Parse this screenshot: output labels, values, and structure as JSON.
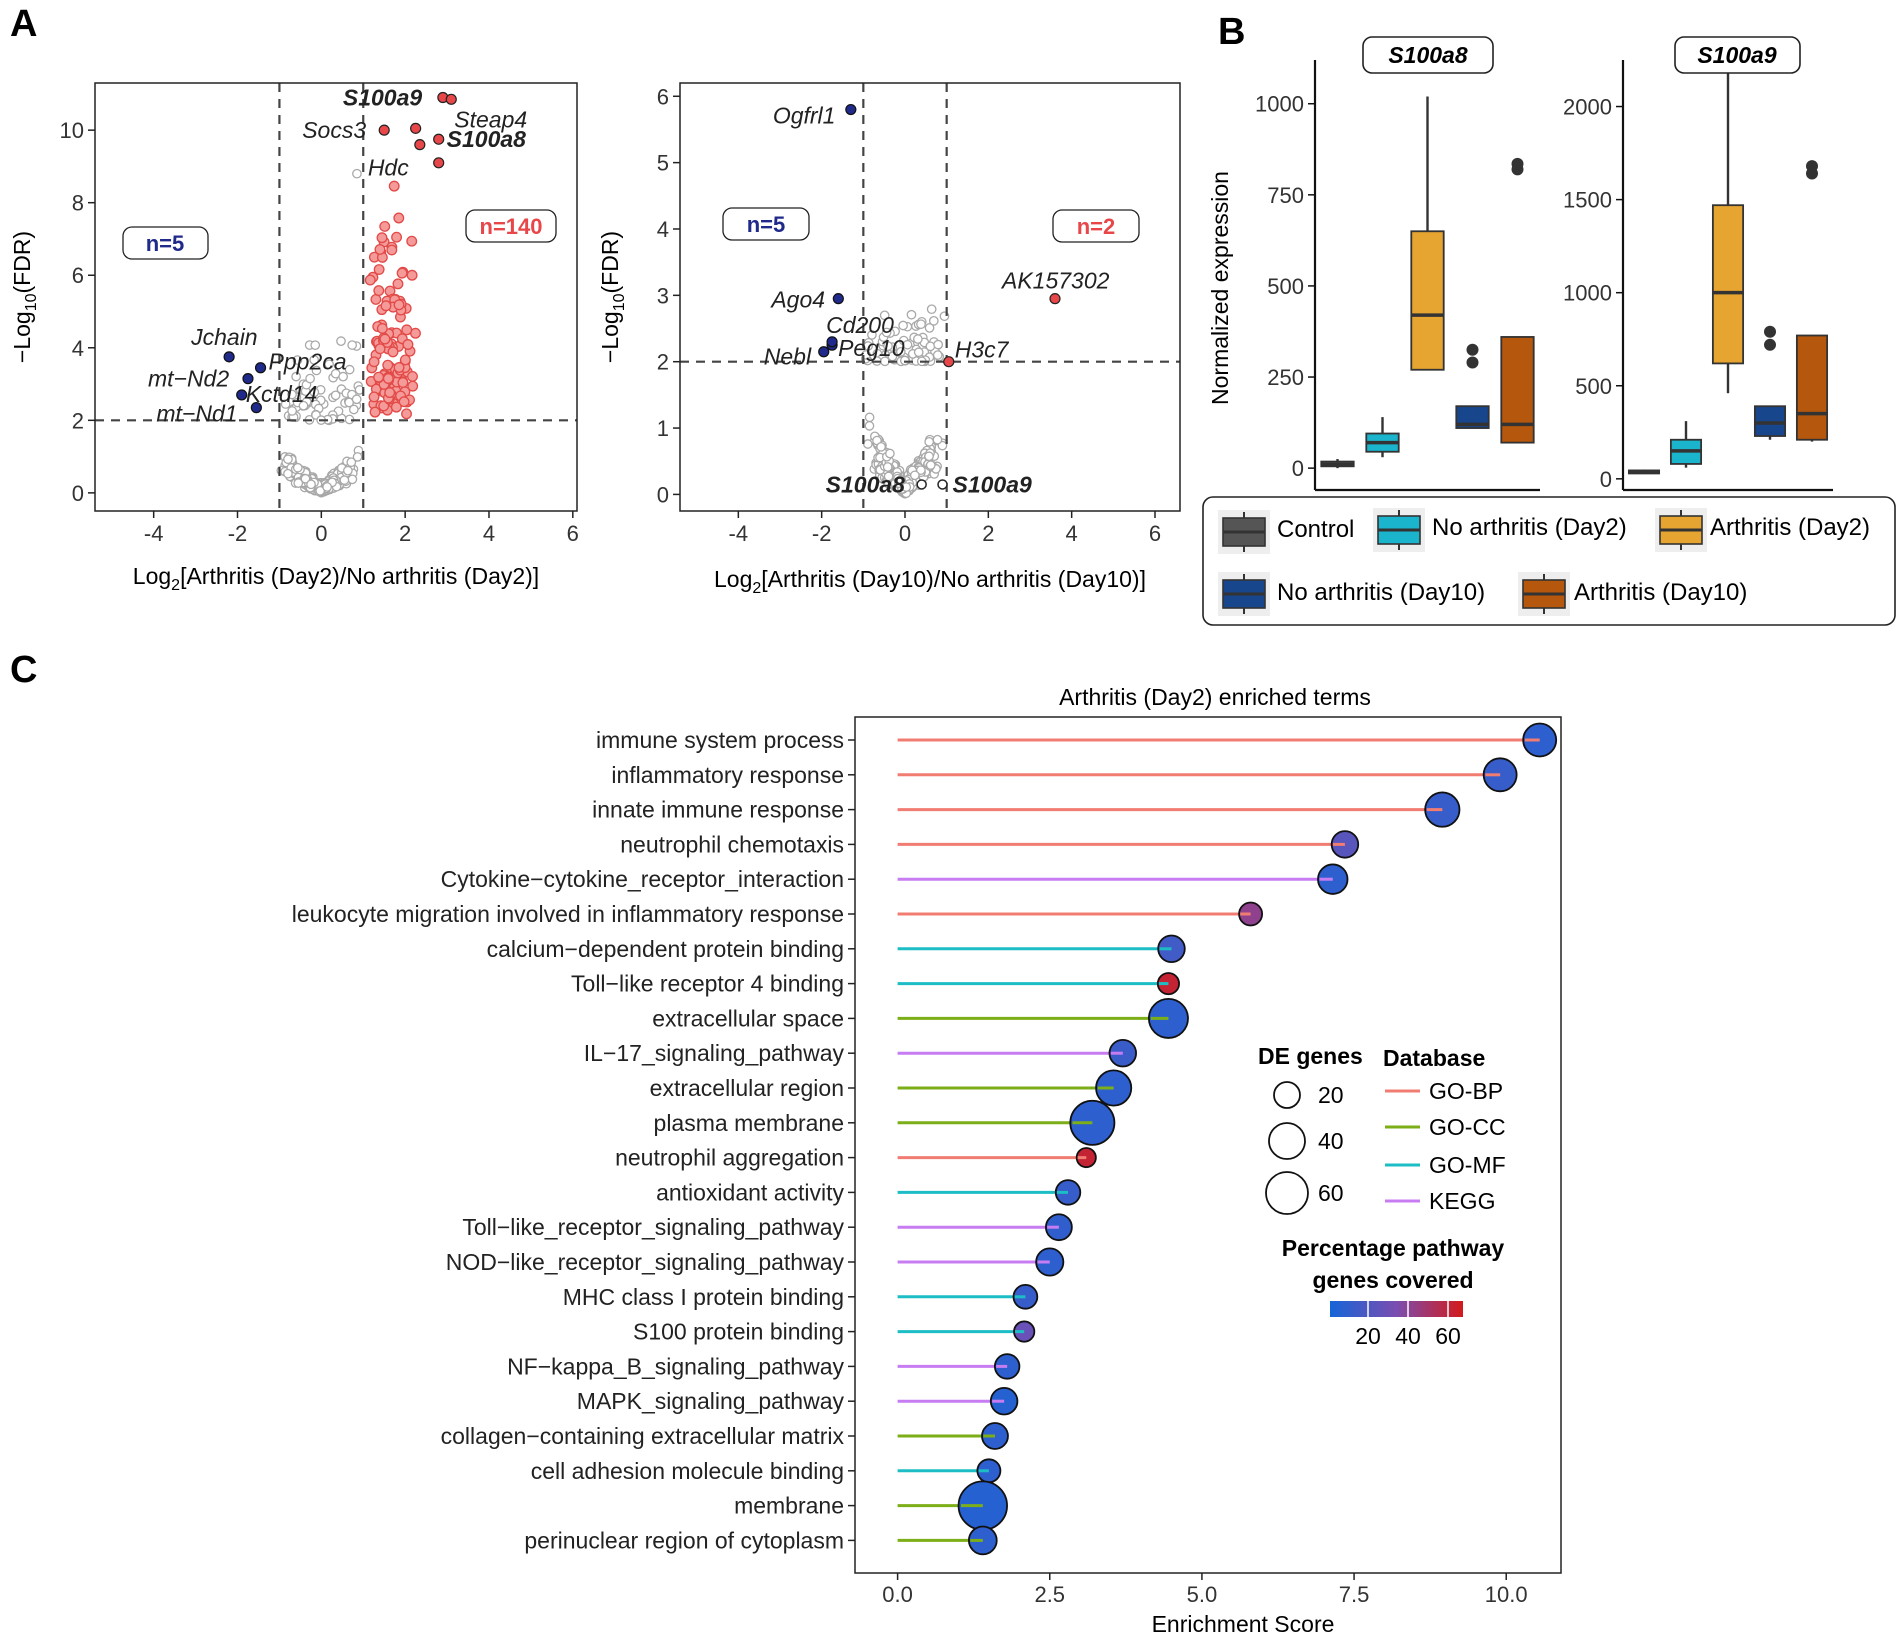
{
  "panels": {
    "a": "A",
    "b": "B",
    "c": "C"
  },
  "chart_data": [
    {
      "panel": "A-left",
      "type": "scatter",
      "title": "",
      "xlabel": "Log2[Arthritis (Day2)/No arthritis (Day2)]",
      "xlabel_parts": [
        "Log",
        "2",
        "[Arthritis (Day2)/No arthritis (Day2)]"
      ],
      "ylabel": "-Log10(FDR)",
      "ylabel_parts": [
        "−Log",
        "10",
        "(FDR)"
      ],
      "xlim": [
        -5.4,
        6.1
      ],
      "ylim": [
        -0.5,
        11.3
      ],
      "xticks": [
        -4,
        -2,
        0,
        2,
        4,
        6
      ],
      "yticks": [
        0,
        2,
        4,
        6,
        8,
        10
      ],
      "thresholds": {
        "x": [
          -1,
          1
        ],
        "y": 2
      },
      "counts": {
        "down": "n=5",
        "up": "n=140"
      },
      "colors": {
        "down": "#1f2a8a",
        "up": "#f0504f",
        "ns": "#a8a8a8",
        "count_down": "#1f2a8a",
        "count_up": "#e8474a"
      },
      "down_points": [
        {
          "x": -2.2,
          "y": 3.75,
          "label": "Jchain",
          "bold": false
        },
        {
          "x": -1.75,
          "y": 3.15,
          "label": "mt−Nd2",
          "bold": false
        },
        {
          "x": -1.45,
          "y": 3.45,
          "label": "Ppp2ca",
          "bold": false
        },
        {
          "x": -1.9,
          "y": 2.7,
          "label": "Kctd14",
          "bold": false
        },
        {
          "x": -1.55,
          "y": 2.35,
          "label": "mt−Nd1",
          "bold": false
        }
      ],
      "up_points": [
        {
          "x": 2.9,
          "y": 10.9,
          "label": "S100a9",
          "bold": true
        },
        {
          "x": 3.1,
          "y": 10.85,
          "label": "Steap4",
          "bold": false
        },
        {
          "x": 1.5,
          "y": 10.0,
          "label": "Socs3",
          "bold": false
        },
        {
          "x": 2.25,
          "y": 10.05,
          "label": "",
          "bold": false
        },
        {
          "x": 2.35,
          "y": 9.6,
          "label": "Hdc",
          "bold": false
        },
        {
          "x": 2.8,
          "y": 9.75,
          "label": "S100a8",
          "bold": true
        },
        {
          "x": 2.8,
          "y": 9.1,
          "label": "",
          "bold": false
        }
      ],
      "ns_top_point": {
        "x": 0.85,
        "y": 8.8
      }
    },
    {
      "panel": "A-right",
      "type": "scatter",
      "title": "",
      "xlabel": "Log2[Arthritis (Day10)/No arthritis (Day10)]",
      "xlabel_parts": [
        "Log",
        "2",
        "[Arthritis (Day10)/No arthritis (Day10)]"
      ],
      "ylabel": "-Log10(FDR)",
      "ylabel_parts": [
        "−Log",
        "10",
        "(FDR)"
      ],
      "xlim": [
        -5.4,
        6.6
      ],
      "ylim": [
        -0.25,
        6.2
      ],
      "xticks": [
        -4,
        -2,
        0,
        2,
        4,
        6
      ],
      "yticks": [
        0,
        1,
        2,
        3,
        4,
        5,
        6
      ],
      "thresholds": {
        "x": [
          -1,
          1
        ],
        "y": 2
      },
      "counts": {
        "down": "n=5",
        "up": "n=2"
      },
      "down_points": [
        {
          "x": -1.3,
          "y": 5.8,
          "label": "Ogfrl1",
          "bold": false
        },
        {
          "x": -1.6,
          "y": 2.95,
          "label": "Ago4",
          "bold": false
        },
        {
          "x": -1.75,
          "y": 2.25,
          "label": "Cd200",
          "bold": false
        },
        {
          "x": -1.95,
          "y": 2.15,
          "label": "Nebl",
          "bold": false
        },
        {
          "x": -1.75,
          "y": 2.3,
          "label": "Peg10",
          "bold": false
        }
      ],
      "up_points": [
        {
          "x": 3.6,
          "y": 2.95,
          "label": "AK157302",
          "bold": false
        },
        {
          "x": 1.05,
          "y": 2.0,
          "label": "H3c7",
          "bold": false
        }
      ],
      "highlight_ns": [
        {
          "x": 0.4,
          "y": 0.15,
          "label": "S100a8",
          "bold": true
        },
        {
          "x": 0.9,
          "y": 0.15,
          "label": "S100a9",
          "bold": true
        }
      ]
    },
    {
      "panel": "B",
      "type": "box",
      "ylabel": "Normalized expression",
      "groups": [
        "Control",
        "No arthritis (Day2)",
        "Arthritis (Day2)",
        "No arthritis (Day10)",
        "Arthritis (Day10)"
      ],
      "colors": [
        "#555555",
        "#1bb4cd",
        "#e6a431",
        "#17468c",
        "#b5570c"
      ],
      "facets": [
        {
          "title": "S100a8",
          "yticks": [
            0,
            250,
            500,
            750,
            1000
          ],
          "ylim": [
            -60,
            1120
          ],
          "boxes": [
            {
              "min": 0,
              "q1": 5,
              "median": 10,
              "q3": 18,
              "max": 25,
              "outliers": []
            },
            {
              "min": 30,
              "q1": 45,
              "median": 70,
              "q3": 95,
              "max": 140,
              "outliers": []
            },
            {
              "min": 270,
              "q1": 270,
              "median": 420,
              "q3": 650,
              "max": 1020,
              "outliers": []
            },
            {
              "min": 110,
              "q1": 110,
              "median": 120,
              "q3": 170,
              "max": 170,
              "outliers": [
                290,
                325
              ]
            },
            {
              "min": 70,
              "q1": 70,
              "median": 120,
              "q3": 360,
              "max": 360,
              "outliers": [
                820,
                835
              ]
            }
          ]
        },
        {
          "title": "S100a9",
          "yticks": [
            0,
            500,
            1000,
            1500,
            2000
          ],
          "ylim": [
            -60,
            2250
          ],
          "boxes": [
            {
              "min": 30,
              "q1": 35,
              "median": 40,
              "q3": 45,
              "max": 50,
              "outliers": []
            },
            {
              "min": 60,
              "q1": 80,
              "median": 150,
              "q3": 210,
              "max": 310,
              "outliers": []
            },
            {
              "min": 460,
              "q1": 620,
              "median": 1000,
              "q3": 1470,
              "max": 2200,
              "outliers": []
            },
            {
              "min": 210,
              "q1": 230,
              "median": 300,
              "q3": 390,
              "max": 390,
              "outliers": [
                720,
                790
              ]
            },
            {
              "min": 200,
              "q1": 210,
              "median": 350,
              "q3": 770,
              "max": 770,
              "outliers": [
                1640,
                1680
              ]
            }
          ]
        }
      ]
    },
    {
      "panel": "C",
      "type": "lollipop",
      "title": "Arthritis (Day2) enriched terms",
      "xlabel": "Enrichment Score",
      "xlim": [
        -0.7,
        10.9
      ],
      "xticks": [
        0.0,
        2.5,
        5.0,
        7.5,
        10.0
      ],
      "xtick_labels": [
        "0.0",
        "2.5",
        "5.0",
        "7.5",
        "10.0"
      ],
      "terms": [
        {
          "label": "immune system process",
          "score": 10.55,
          "db": "GO-BP",
          "genes": 25,
          "pct": 12
        },
        {
          "label": "inflammatory response",
          "score": 9.9,
          "db": "GO-BP",
          "genes": 25,
          "pct": 15
        },
        {
          "label": "innate immune response",
          "score": 8.95,
          "db": "GO-BP",
          "genes": 28,
          "pct": 15
        },
        {
          "label": "neutrophil chemotaxis",
          "score": 7.35,
          "db": "GO-BP",
          "genes": 13,
          "pct": 25
        },
        {
          "label": "Cytokine−cytokine_receptor_interaction",
          "score": 7.15,
          "db": "KEGG",
          "genes": 18,
          "pct": 12
        },
        {
          "label": "leukocyte migration involved in inflammatory response",
          "score": 5.8,
          "db": "GO-BP",
          "genes": 8,
          "pct": 42
        },
        {
          "label": "calcium−dependent protein binding",
          "score": 4.5,
          "db": "GO-MF",
          "genes": 13,
          "pct": 18
        },
        {
          "label": "Toll−like receptor 4 binding",
          "score": 4.45,
          "db": "GO-MF",
          "genes": 6,
          "pct": 60
        },
        {
          "label": "extracellular space",
          "score": 4.45,
          "db": "GO-CC",
          "genes": 40,
          "pct": 12
        },
        {
          "label": "IL−17_signaling_pathway",
          "score": 3.7,
          "db": "KEGG",
          "genes": 13,
          "pct": 16
        },
        {
          "label": "extracellular region",
          "score": 3.55,
          "db": "GO-CC",
          "genes": 30,
          "pct": 12
        },
        {
          "label": "plasma membrane",
          "score": 3.2,
          "db": "GO-CC",
          "genes": 55,
          "pct": 12
        },
        {
          "label": "neutrophil aggregation",
          "score": 3.1,
          "db": "GO-BP",
          "genes": 4,
          "pct": 60
        },
        {
          "label": "antioxidant activity",
          "score": 2.8,
          "db": "GO-MF",
          "genes": 10,
          "pct": 15
        },
        {
          "label": "Toll−like_receptor_signaling_pathway",
          "score": 2.65,
          "db": "KEGG",
          "genes": 12,
          "pct": 13
        },
        {
          "label": "NOD−like_receptor_signaling_pathway",
          "score": 2.5,
          "db": "KEGG",
          "genes": 14,
          "pct": 12
        },
        {
          "label": "MHC class I protein binding",
          "score": 2.1,
          "db": "GO-MF",
          "genes": 9,
          "pct": 15
        },
        {
          "label": "S100 protein binding",
          "score": 2.08,
          "db": "GO-MF",
          "genes": 5,
          "pct": 30
        },
        {
          "label": "NF−kappa_B_signaling_pathway",
          "score": 1.8,
          "db": "KEGG",
          "genes": 10,
          "pct": 12
        },
        {
          "label": "MAPK_signaling_pathway",
          "score": 1.75,
          "db": "KEGG",
          "genes": 13,
          "pct": 10
        },
        {
          "label": "collagen−containing extracellular matrix",
          "score": 1.6,
          "db": "GO-CC",
          "genes": 12,
          "pct": 12
        },
        {
          "label": "cell adhesion molecule binding",
          "score": 1.5,
          "db": "GO-MF",
          "genes": 8,
          "pct": 12
        },
        {
          "label": "membrane",
          "score": 1.4,
          "db": "GO-CC",
          "genes": 70,
          "pct": 10
        },
        {
          "label": "perinuclear region of cytoplasm",
          "score": 1.4,
          "db": "GO-CC",
          "genes": 15,
          "pct": 12
        }
      ],
      "db_colors": {
        "GO-BP": "#f07c72",
        "GO-CC": "#7cae18",
        "GO-MF": "#1cbdc4",
        "KEGG": "#c77cf2"
      },
      "legend": {
        "size_title": "DE genes",
        "size_values": [
          "20",
          "40",
          "60"
        ],
        "db_title": "Database",
        "db_entries": [
          "GO-BP",
          "GO-CC",
          "GO-MF",
          "KEGG"
        ],
        "pct_title_line1": "Percentage pathway",
        "pct_title_line2": "genes covered",
        "pct_ticks": [
          "20",
          "40",
          "60"
        ],
        "gradient_low": "#1565d8",
        "gradient_mid": "#7a4db0",
        "gradient_high": "#d31a1a"
      }
    }
  ]
}
